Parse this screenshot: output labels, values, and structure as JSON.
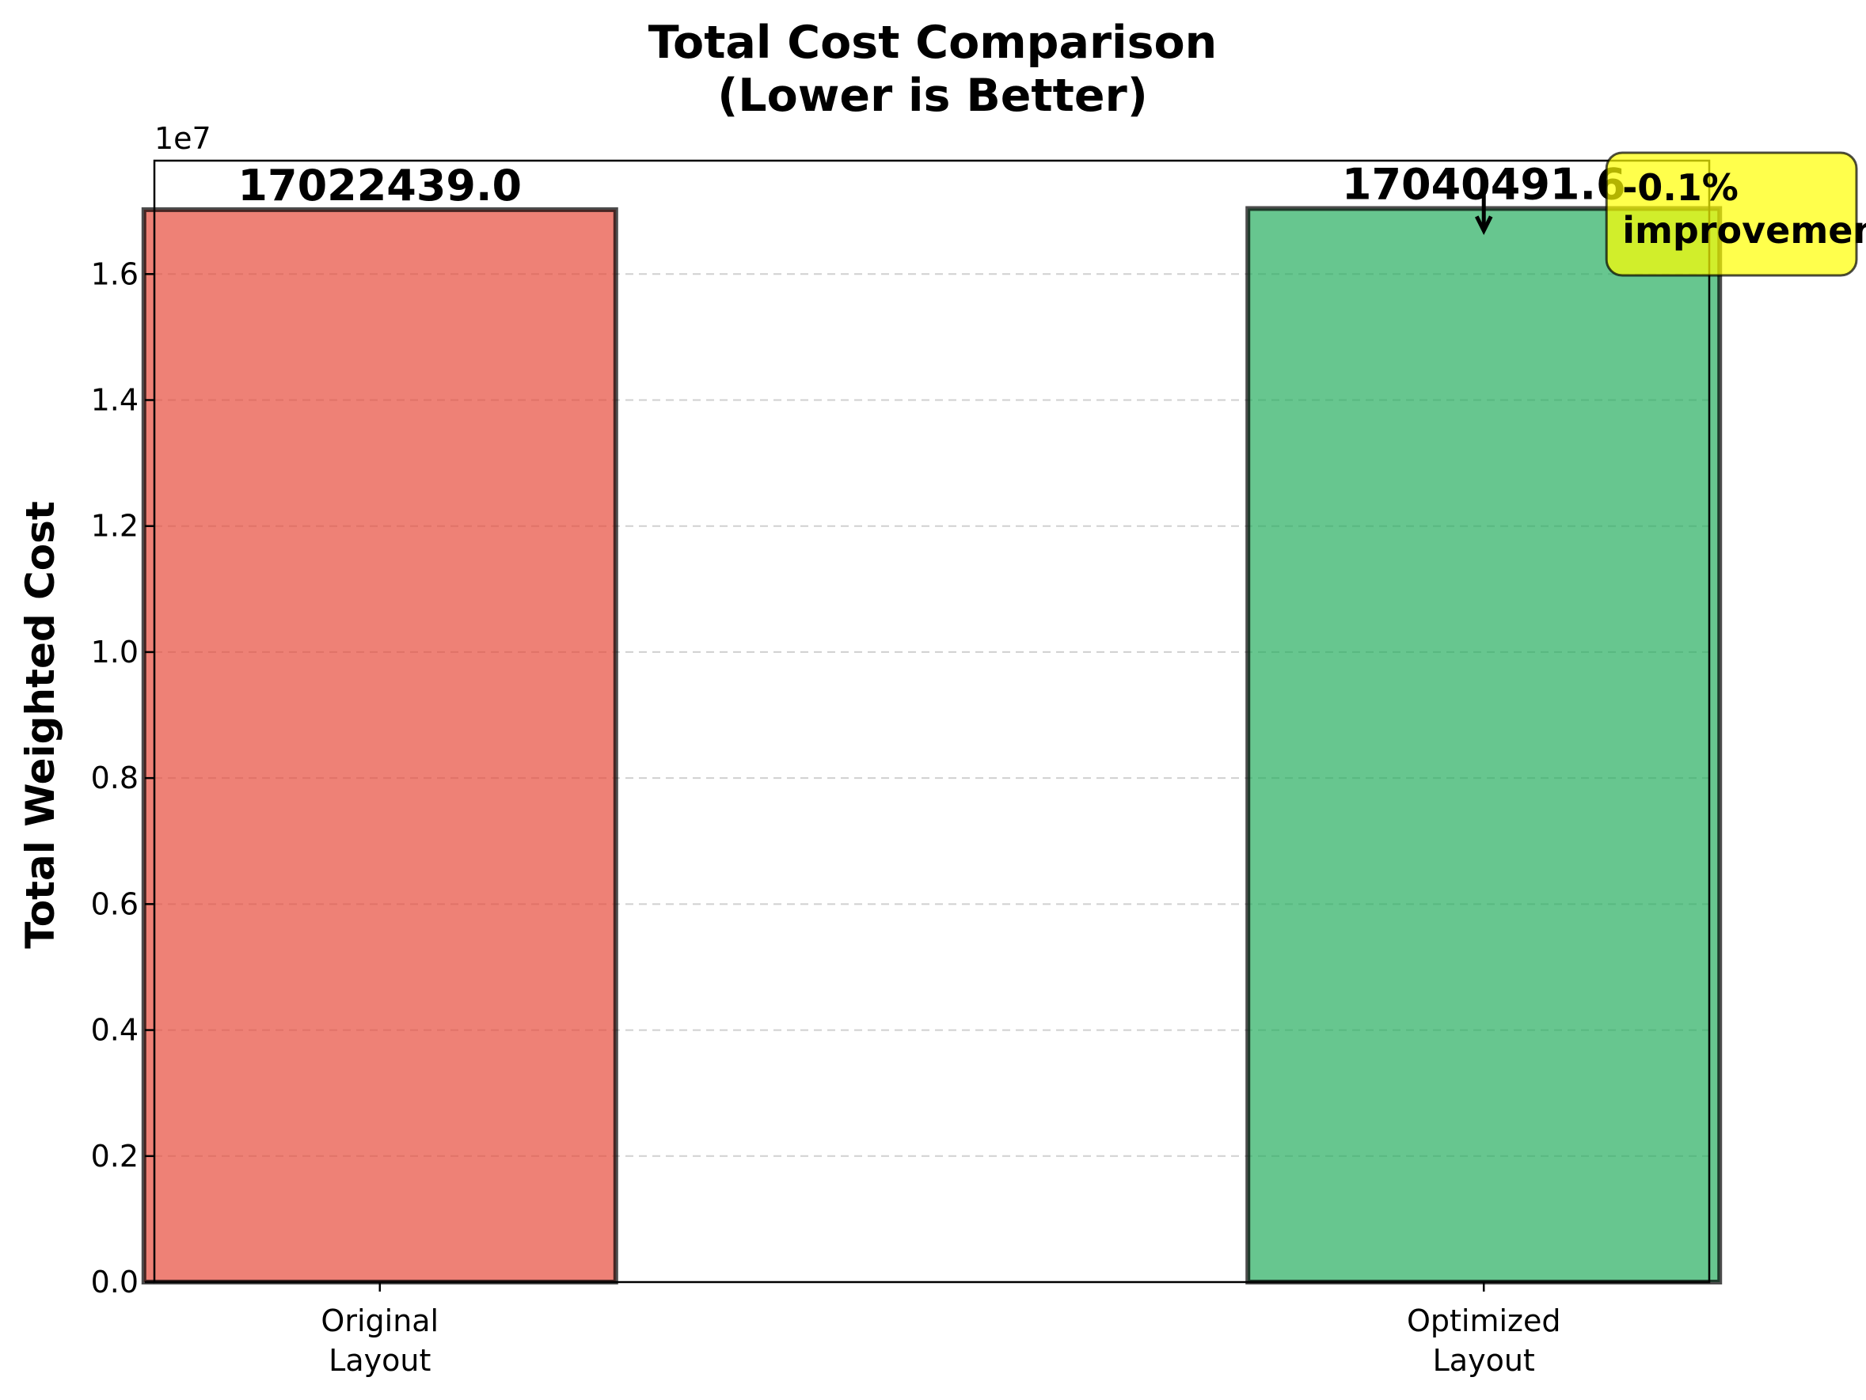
{
  "chart_data": {
    "type": "bar",
    "title": "Total Cost Comparison",
    "subtitle": "(Lower is Better)",
    "ylabel": "Total Weighted Cost",
    "xlabel": "",
    "categories": [
      "Original\nLayout",
      "Optimized\nLayout"
    ],
    "values": [
      17022439.0,
      17040491.6
    ],
    "value_labels": [
      "17022439.0",
      "17040491.6"
    ],
    "colors": [
      "#e74c3c",
      "#27ae60"
    ],
    "ylim": [
      0,
      17800000
    ],
    "y_offset_label": "1e7",
    "y_ticks": [
      0,
      2000000,
      4000000,
      6000000,
      8000000,
      10000000,
      12000000,
      14000000,
      16000000
    ],
    "y_tick_labels": [
      "0.0",
      "0.2",
      "0.4",
      "0.6",
      "0.8",
      "1.0",
      "1.2",
      "1.4",
      "1.6"
    ],
    "grid": "y-dashed",
    "annotation": {
      "lines": [
        "-0.1%",
        "improvement"
      ],
      "background": "#ffff00",
      "arrow_target_category": 1
    }
  }
}
